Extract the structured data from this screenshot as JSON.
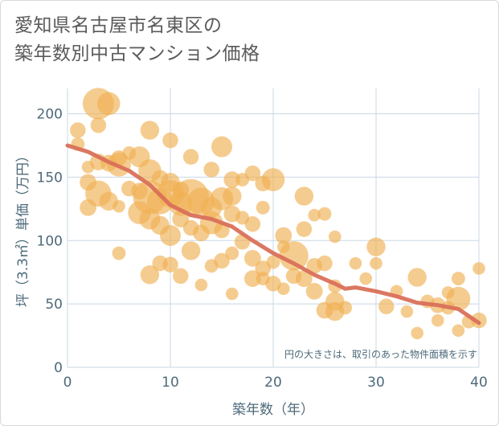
{
  "title_line1": "愛知県名古屋市名東区の",
  "title_line2": "築年数別中古マンション価格",
  "note": "円の大きさは、取引のあった物件面積を示す",
  "chart_data": {
    "type": "scatter",
    "title": "愛知県名古屋市名東区の築年数別中古マンション価格",
    "xlabel": "築年数（年）",
    "ylabel": "坪（3.3㎡）単価（万円）",
    "xlim": [
      0,
      40
    ],
    "ylim": [
      0,
      220
    ],
    "xticks": [
      0,
      10,
      20,
      30,
      40
    ],
    "yticks": [
      0,
      50,
      100,
      150,
      200
    ],
    "grid": true,
    "colors": {
      "bubble": "#f0b153",
      "trend": "#d9705a",
      "grid": "#c9d8e3"
    },
    "points": [
      [
        3,
        208,
        3
      ],
      [
        4,
        208,
        2.2
      ],
      [
        1,
        187,
        1.5
      ],
      [
        3,
        191,
        1.5
      ],
      [
        8,
        187,
        1.8
      ],
      [
        10,
        179,
        1.5
      ],
      [
        15,
        174,
        2
      ],
      [
        1,
        176,
        1.3
      ],
      [
        5,
        165,
        1.5
      ],
      [
        6,
        169,
        1.3
      ],
      [
        7,
        166,
        2
      ],
      [
        12,
        166,
        1.5
      ],
      [
        14,
        156,
        1.5
      ],
      [
        2,
        158,
        1.2
      ],
      [
        3,
        162,
        1.6
      ],
      [
        4,
        161,
        1.6
      ],
      [
        5,
        160,
        2.3
      ],
      [
        8,
        155,
        2.2
      ],
      [
        9,
        149,
        1.6
      ],
      [
        10,
        146,
        1.8
      ],
      [
        11,
        140,
        1.6
      ],
      [
        2,
        146,
        1.6
      ],
      [
        3,
        137,
        2.5
      ],
      [
        4,
        131,
        1.8
      ],
      [
        6,
        141,
        1.5
      ],
      [
        7,
        139,
        1.6
      ],
      [
        8,
        134,
        3.2
      ],
      [
        9,
        131,
        2.5
      ],
      [
        10,
        137,
        2.6
      ],
      [
        11,
        129,
        2.3
      ],
      [
        12,
        134,
        3.5
      ],
      [
        13,
        131,
        2.6
      ],
      [
        14,
        126,
        2
      ],
      [
        15,
        133,
        2.2
      ],
      [
        16,
        135,
        1.8
      ],
      [
        16,
        148,
        1.6
      ],
      [
        17,
        148,
        1.3
      ],
      [
        18,
        153,
        1.5
      ],
      [
        19,
        145,
        1.5
      ],
      [
        20,
        148,
        2.2
      ],
      [
        2,
        126,
        1.6
      ],
      [
        5,
        127,
        1.2
      ],
      [
        7,
        122,
        2.2
      ],
      [
        8,
        117,
        2
      ],
      [
        9,
        112,
        1.8
      ],
      [
        10,
        104,
        2
      ],
      [
        11,
        117,
        1.6
      ],
      [
        12,
        110,
        1.5
      ],
      [
        13,
        106,
        1.6
      ],
      [
        14,
        114,
        2.2
      ],
      [
        15,
        108,
        1.5
      ],
      [
        16,
        121,
        1.6
      ],
      [
        17,
        118,
        1.3
      ],
      [
        18,
        113,
        1.5
      ],
      [
        19,
        126,
        1.3
      ],
      [
        21,
        104,
        1.6
      ],
      [
        23,
        135,
        1.8
      ],
      [
        24,
        120,
        1.2
      ],
      [
        25,
        121,
        1.3
      ],
      [
        26,
        103,
        1.2
      ],
      [
        22,
        88,
        2.8
      ],
      [
        23,
        109,
        1.5
      ],
      [
        5,
        90,
        1.3
      ],
      [
        9,
        82,
        1.5
      ],
      [
        10,
        81,
        1.5
      ],
      [
        12,
        92,
        1.8
      ],
      [
        14,
        80,
        1.3
      ],
      [
        15,
        84,
        1.5
      ],
      [
        16,
        90,
        1.3
      ],
      [
        17,
        99,
        1.5
      ],
      [
        18,
        86,
        1.6
      ],
      [
        19,
        78,
        1.5
      ],
      [
        20,
        83,
        1.3
      ],
      [
        21,
        95,
        1.2
      ],
      [
        8,
        73,
        1.8
      ],
      [
        11,
        72,
        1.5
      ],
      [
        13,
        65,
        1.2
      ],
      [
        16,
        58,
        1.2
      ],
      [
        18,
        70,
        1.6
      ],
      [
        19,
        70,
        1.3
      ],
      [
        20,
        66,
        1.5
      ],
      [
        21,
        62,
        1.2
      ],
      [
        22,
        72,
        1.5
      ],
      [
        23,
        70,
        1.6
      ],
      [
        24,
        80,
        1.5
      ],
      [
        24,
        60,
        1.6
      ],
      [
        25,
        82,
        1.5
      ],
      [
        26,
        64,
        1.3
      ],
      [
        26,
        52,
        1.8
      ],
      [
        27,
        47,
        1.3
      ],
      [
        28,
        82,
        1.2
      ],
      [
        29,
        70,
        1.2
      ],
      [
        30,
        95,
        1.8
      ],
      [
        30,
        82,
        1.2
      ],
      [
        31,
        48,
        1.5
      ],
      [
        32,
        60,
        1.2
      ],
      [
        33,
        44,
        1.2
      ],
      [
        34,
        71,
        1.8
      ],
      [
        35,
        52,
        1.3
      ],
      [
        36,
        49,
        1.5
      ],
      [
        37,
        47,
        1.3
      ],
      [
        37,
        59,
        1.2
      ],
      [
        38,
        54,
        2.3
      ],
      [
        39,
        36,
        1.3
      ],
      [
        40,
        78,
        1.2
      ],
      [
        40,
        37,
        1.5
      ],
      [
        38,
        70,
        1.3
      ],
      [
        34,
        27,
        1.2
      ],
      [
        38,
        29,
        1.2
      ],
      [
        36,
        37,
        1.2
      ],
      [
        25,
        45,
        1.6
      ],
      [
        26,
        44,
        1.8
      ]
    ],
    "trend": {
      "x": [
        0,
        2,
        4,
        6,
        8,
        10,
        12,
        14,
        16,
        18,
        20,
        22,
        24,
        26,
        27,
        28,
        30,
        32,
        34,
        36,
        38,
        40
      ],
      "y": [
        175,
        170,
        162,
        155,
        144,
        128,
        120,
        117,
        111,
        100,
        90,
        82,
        73,
        66,
        62,
        63,
        60,
        56,
        51,
        49,
        46,
        35
      ]
    }
  }
}
